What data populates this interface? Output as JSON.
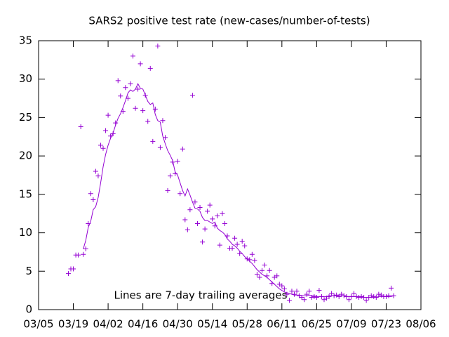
{
  "chart_data": {
    "type": "scatter",
    "title": "SARS2 positive test rate (new-cases/number-of-tests)",
    "annotation": "Lines are 7-day trailing averages",
    "x": [
      "03/17",
      "03/18",
      "03/19",
      "03/20",
      "03/21",
      "03/22",
      "03/23",
      "03/24",
      "03/25",
      "03/26",
      "03/27",
      "03/28",
      "03/29",
      "03/30",
      "03/31",
      "04/01",
      "04/02",
      "04/03",
      "04/04",
      "04/05",
      "04/06",
      "04/07",
      "04/08",
      "04/09",
      "04/10",
      "04/11",
      "04/12",
      "04/13",
      "04/14",
      "04/15",
      "04/16",
      "04/17",
      "04/18",
      "04/19",
      "04/20",
      "04/21",
      "04/22",
      "04/23",
      "04/24",
      "04/25",
      "04/26",
      "04/27",
      "04/28",
      "04/29",
      "04/30",
      "05/01",
      "05/02",
      "05/03",
      "05/04",
      "05/05",
      "05/06",
      "05/07",
      "05/08",
      "05/09",
      "05/10",
      "05/11",
      "05/12",
      "05/13",
      "05/14",
      "05/15",
      "05/16",
      "05/17",
      "05/18",
      "05/19",
      "05/20",
      "05/21",
      "05/22",
      "05/23",
      "05/24",
      "05/25",
      "05/26",
      "05/27",
      "05/28",
      "05/29",
      "05/30",
      "05/31",
      "06/01",
      "06/02",
      "06/03",
      "06/04",
      "06/05",
      "06/06",
      "06/07",
      "06/08",
      "06/09",
      "06/10",
      "06/11",
      "06/12",
      "06/13",
      "06/14",
      "06/15",
      "06/16",
      "06/17",
      "06/18",
      "06/19",
      "06/20",
      "06/21",
      "06/22",
      "06/23",
      "06/24",
      "06/25",
      "06/26",
      "06/27",
      "06/28",
      "06/29",
      "06/30",
      "07/01",
      "07/02",
      "07/03",
      "07/04",
      "07/05",
      "07/06",
      "07/07",
      "07/08",
      "07/09",
      "07/10",
      "07/11",
      "07/12",
      "07/13",
      "07/14",
      "07/15",
      "07/16",
      "07/17",
      "07/18",
      "07/19",
      "07/20",
      "07/21",
      "07/22",
      "07/23",
      "07/24",
      "07/25",
      "07/26"
    ],
    "series": [
      {
        "mode": "points",
        "color": "#9400d3",
        "values": [
          4.7,
          5.3,
          5.3,
          7.1,
          7.1,
          23.8,
          7.2,
          7.9,
          11.2,
          15.1,
          14.3,
          18.0,
          17.4,
          21.4,
          21.0,
          23.3,
          25.3,
          22.6,
          22.9,
          24.3,
          29.8,
          27.8,
          25.8,
          28.9,
          27.5,
          29.4,
          33.0,
          26.2,
          28.7,
          32.0,
          25.9,
          27.9,
          24.5,
          31.4,
          21.9,
          26.1,
          34.3,
          21.1,
          24.6,
          22.4,
          15.5,
          17.4,
          19.2,
          17.7,
          19.3,
          15.1,
          20.9,
          11.7,
          10.4,
          13.0,
          27.9,
          14.0,
          11.2,
          13.3,
          8.8,
          10.5,
          12.8,
          13.6,
          11.8,
          10.9,
          12.2,
          8.4,
          12.5,
          11.2,
          9.6,
          8.0,
          8.0,
          9.3,
          8.5,
          7.3,
          8.9,
          8.3,
          6.6,
          6.5,
          7.2,
          6.4,
          4.6,
          4.2,
          5.1,
          5.8,
          4.4,
          5.1,
          3.4,
          4.2,
          4.4,
          3.3,
          3.1,
          2.7,
          2.0,
          1.2,
          2.4,
          2.0,
          2.4,
          1.8,
          1.6,
          1.3,
          2.0,
          2.4,
          1.6,
          1.7,
          1.6,
          2.5,
          1.7,
          1.3,
          1.5,
          1.7,
          2.1,
          1.8,
          1.9,
          1.7,
          2.0,
          1.8,
          1.7,
          1.3,
          1.7,
          2.1,
          1.7,
          1.6,
          1.7,
          1.6,
          1.2,
          1.6,
          1.8,
          1.7,
          1.6,
          2.0,
          1.9,
          1.7,
          1.7,
          1.8,
          2.8,
          1.8
        ]
      },
      {
        "mode": "line",
        "color": "#9400d3",
        "values": [
          null,
          null,
          null,
          null,
          null,
          null,
          7.9,
          9.0,
          10.7,
          11.5,
          13.0,
          13.4,
          14.6,
          16.5,
          18.6,
          20.2,
          21.4,
          22.3,
          23.0,
          24.0,
          24.9,
          25.5,
          26.3,
          27.2,
          28.2,
          28.6,
          28.4,
          28.7,
          29.4,
          28.8,
          28.7,
          27.9,
          27.1,
          26.7,
          26.9,
          25.4,
          24.6,
          24.4,
          22.6,
          21.6,
          20.7,
          20.1,
          19.4,
          17.9,
          17.5,
          16.5,
          15.5,
          14.8,
          15.7,
          14.9,
          14.0,
          13.2,
          13.1,
          12.8,
          12.0,
          11.6,
          11.6,
          11.4,
          11.2,
          11.4,
          10.6,
          10.3,
          10.1,
          9.8,
          9.2,
          8.9,
          8.5,
          8.3,
          8.0,
          7.6,
          7.3,
          6.9,
          6.6,
          6.3,
          6.0,
          5.6,
          5.2,
          4.9,
          4.6,
          4.4,
          4.2,
          3.9,
          3.6,
          3.3,
          3.0,
          2.7,
          2.5,
          2.3,
          2.2,
          2.1,
          2.0,
          1.9,
          1.9,
          1.9,
          1.8,
          1.8,
          1.8,
          1.9,
          1.8,
          1.8,
          1.7,
          1.7,
          1.7,
          1.7,
          1.7,
          1.8,
          1.8,
          1.8,
          1.8,
          1.8,
          1.8,
          1.8,
          1.7,
          1.7,
          1.7,
          1.7,
          1.7,
          1.7,
          1.7,
          1.6,
          1.6,
          1.6,
          1.6,
          1.6,
          1.6,
          1.7,
          1.7,
          1.7,
          1.7,
          1.7,
          1.7,
          1.8
        ]
      }
    ],
    "xlim": [
      "03/05",
      "08/06"
    ],
    "xticks": [
      "03/05",
      "03/19",
      "04/02",
      "04/16",
      "04/30",
      "05/14",
      "05/28",
      "06/11",
      "06/25",
      "07/09",
      "07/23",
      "08/06"
    ],
    "ylim": [
      0,
      35
    ],
    "yticks": [
      0,
      5,
      10,
      15,
      20,
      25,
      30,
      35
    ]
  }
}
